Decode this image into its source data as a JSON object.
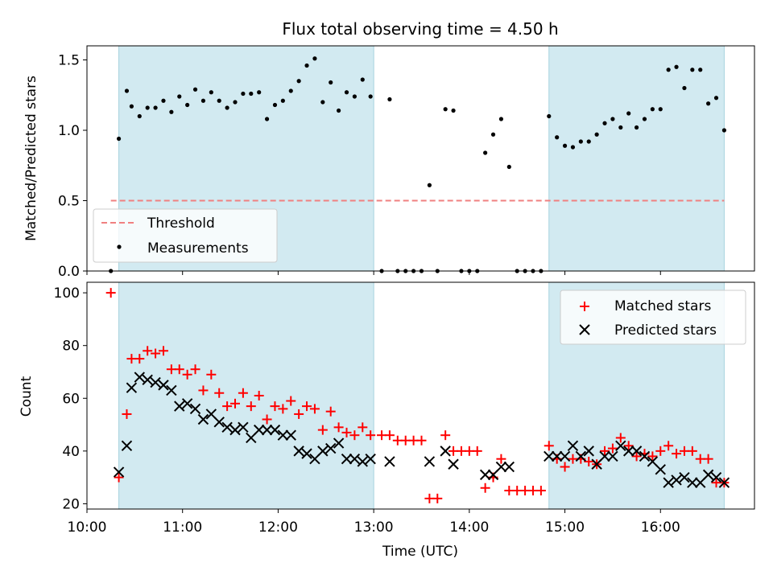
{
  "title": "Flux total observing time = 4.50 h",
  "colors": {
    "shade": "#add8e6",
    "threshold": "#f08080",
    "matched": "#ff0000",
    "predicted": "#000000",
    "measurement": "#000000"
  },
  "chart_data": [
    {
      "type": "scatter",
      "ylabel": "Matched/Predicted stars",
      "xlim": [
        "10:00",
        "16:59"
      ],
      "ylim": [
        0,
        1.6
      ],
      "yticks": [
        "0.0",
        "0.5",
        "1.0",
        "1.5"
      ],
      "grid": false,
      "legend_position": "lower-left",
      "shaded_intervals": [
        [
          "10:20",
          "13:00"
        ],
        [
          "14:50",
          "16:40"
        ]
      ],
      "threshold": {
        "name": "Threshold",
        "y": 0.5,
        "x_from": "10:15",
        "x_to": "16:40"
      },
      "series": [
        {
          "name": "Measurements",
          "x": [
            "10:15",
            "10:20",
            "10:25",
            "10:28",
            "10:33",
            "10:38",
            "10:43",
            "10:48",
            "10:53",
            "10:58",
            "11:03",
            "11:08",
            "11:13",
            "11:18",
            "11:23",
            "11:28",
            "11:33",
            "11:38",
            "11:43",
            "11:48",
            "11:53",
            "11:58",
            "12:03",
            "12:08",
            "12:13",
            "12:18",
            "12:23",
            "12:28",
            "12:33",
            "12:38",
            "12:43",
            "12:48",
            "12:53",
            "12:58",
            "13:05",
            "13:10",
            "13:15",
            "13:20",
            "13:25",
            "13:30",
            "13:35",
            "13:40",
            "13:45",
            "13:50",
            "13:55",
            "14:00",
            "14:05",
            "14:10",
            "14:15",
            "14:20",
            "14:25",
            "14:30",
            "14:35",
            "14:40",
            "14:45",
            "14:50",
            "14:55",
            "15:00",
            "15:05",
            "15:10",
            "15:15",
            "15:20",
            "15:25",
            "15:30",
            "15:35",
            "15:40",
            "15:45",
            "15:50",
            "15:55",
            "16:00",
            "16:05",
            "16:10",
            "16:15",
            "16:20",
            "16:25",
            "16:30",
            "16:35",
            "16:40"
          ],
          "y": [
            0,
            0.94,
            1.28,
            1.17,
            1.1,
            1.16,
            1.16,
            1.21,
            1.13,
            1.24,
            1.18,
            1.29,
            1.21,
            1.27,
            1.21,
            1.16,
            1.2,
            1.26,
            1.26,
            1.27,
            1.08,
            1.18,
            1.21,
            1.28,
            1.35,
            1.46,
            1.51,
            1.2,
            1.34,
            1.14,
            1.27,
            1.24,
            1.36,
            1.24,
            0,
            1.22,
            0,
            0,
            0,
            0,
            0.61,
            0,
            1.15,
            1.14,
            0,
            0,
            0,
            0.84,
            0.97,
            1.08,
            0.74,
            0,
            0,
            0,
            0,
            1.1,
            0.95,
            0.89,
            0.88,
            0.92,
            0.92,
            0.97,
            1.05,
            1.08,
            1.02,
            1.12,
            1.02,
            1.08,
            1.15,
            1.15,
            1.43,
            1.45,
            1.3,
            1.43,
            1.43,
            1.19,
            1.23,
            1.0
          ]
        }
      ]
    },
    {
      "type": "scatter",
      "xlabel": "Time (UTC)",
      "ylabel": "Count",
      "xlim": [
        "10:00",
        "16:59"
      ],
      "ylim": [
        18,
        104
      ],
      "yticks": [
        "20",
        "40",
        "60",
        "80",
        "100"
      ],
      "xticks": [
        "10:00",
        "11:00",
        "12:00",
        "13:00",
        "14:00",
        "15:00",
        "16:00"
      ],
      "grid": false,
      "legend_position": "top-right",
      "shaded_intervals": [
        [
          "10:20",
          "13:00"
        ],
        [
          "14:50",
          "16:40"
        ]
      ],
      "series": [
        {
          "name": "Matched stars",
          "x": [
            "10:15",
            "10:20",
            "10:25",
            "10:28",
            "10:33",
            "10:38",
            "10:43",
            "10:48",
            "10:53",
            "10:58",
            "11:03",
            "11:08",
            "11:13",
            "11:18",
            "11:23",
            "11:28",
            "11:33",
            "11:38",
            "11:43",
            "11:48",
            "11:53",
            "11:58",
            "12:03",
            "12:08",
            "12:13",
            "12:18",
            "12:23",
            "12:28",
            "12:33",
            "12:38",
            "12:43",
            "12:48",
            "12:53",
            "12:58",
            "13:05",
            "13:10",
            "13:15",
            "13:20",
            "13:25",
            "13:30",
            "13:35",
            "13:40",
            "13:45",
            "13:50",
            "13:55",
            "14:00",
            "14:05",
            "14:10",
            "14:15",
            "14:20",
            "14:25",
            "14:30",
            "14:35",
            "14:40",
            "14:45",
            "14:50",
            "14:55",
            "15:00",
            "15:05",
            "15:10",
            "15:15",
            "15:20",
            "15:25",
            "15:30",
            "15:35",
            "15:40",
            "15:45",
            "15:50",
            "15:55",
            "16:00",
            "16:05",
            "16:10",
            "16:15",
            "16:20",
            "16:25",
            "16:30",
            "16:35",
            "16:40"
          ],
          "y": [
            100,
            30,
            54,
            75,
            75,
            78,
            77,
            78,
            71,
            71,
            69,
            71,
            63,
            69,
            62,
            57,
            58,
            62,
            57,
            61,
            52,
            57,
            56,
            59,
            54,
            57,
            56,
            48,
            55,
            49,
            47,
            46,
            49,
            46,
            46,
            46,
            44,
            44,
            44,
            44,
            22,
            22,
            46,
            40,
            40,
            40,
            40,
            26,
            30,
            37,
            25,
            25,
            25,
            25,
            25,
            42,
            37,
            34,
            37,
            37,
            36,
            35,
            40,
            41,
            45,
            42,
            38,
            39,
            38,
            40,
            42,
            39,
            40,
            40,
            37,
            37,
            28,
            28
          ]
        },
        {
          "name": "Predicted stars",
          "x": [
            "10:15",
            "10:20",
            "10:25",
            "10:28",
            "10:33",
            "10:38",
            "10:43",
            "10:48",
            "10:53",
            "10:58",
            "11:03",
            "11:08",
            "11:13",
            "11:18",
            "11:23",
            "11:28",
            "11:33",
            "11:38",
            "11:43",
            "11:48",
            "11:53",
            "11:58",
            "12:03",
            "12:08",
            "12:13",
            "12:18",
            "12:23",
            "12:28",
            "12:33",
            "12:38",
            "12:43",
            "12:48",
            "12:53",
            "12:58",
            "13:05",
            "13:10",
            "13:15",
            "13:20",
            "13:25",
            "13:30",
            "13:35",
            "13:40",
            "13:45",
            "13:50",
            "13:55",
            "14:00",
            "14:05",
            "14:10",
            "14:15",
            "14:20",
            "14:25",
            "14:30",
            "14:35",
            "14:40",
            "14:45",
            "14:50",
            "14:55",
            "15:00",
            "15:05",
            "15:10",
            "15:15",
            "15:20",
            "15:25",
            "15:30",
            "15:35",
            "15:40",
            "15:45",
            "15:50",
            "15:55",
            "16:00",
            "16:05",
            "16:10",
            "16:15",
            "16:20",
            "16:25",
            "16:30",
            "16:35",
            "16:40"
          ],
          "y": [
            null,
            32,
            42,
            64,
            68,
            67,
            66,
            65,
            63,
            57,
            58,
            56,
            52,
            54,
            51,
            49,
            48,
            49,
            45,
            48,
            48,
            48,
            46,
            46,
            40,
            39,
            37,
            40,
            41,
            43,
            37,
            37,
            36,
            37,
            null,
            36,
            null,
            null,
            null,
            null,
            36,
            null,
            40,
            35,
            null,
            null,
            null,
            31,
            31,
            34,
            34,
            null,
            null,
            null,
            null,
            38,
            38,
            38,
            42,
            38,
            40,
            35,
            38,
            38,
            42,
            40,
            40,
            38,
            36,
            33,
            28,
            29,
            30,
            28,
            28,
            31,
            30,
            28
          ]
        }
      ]
    }
  ]
}
